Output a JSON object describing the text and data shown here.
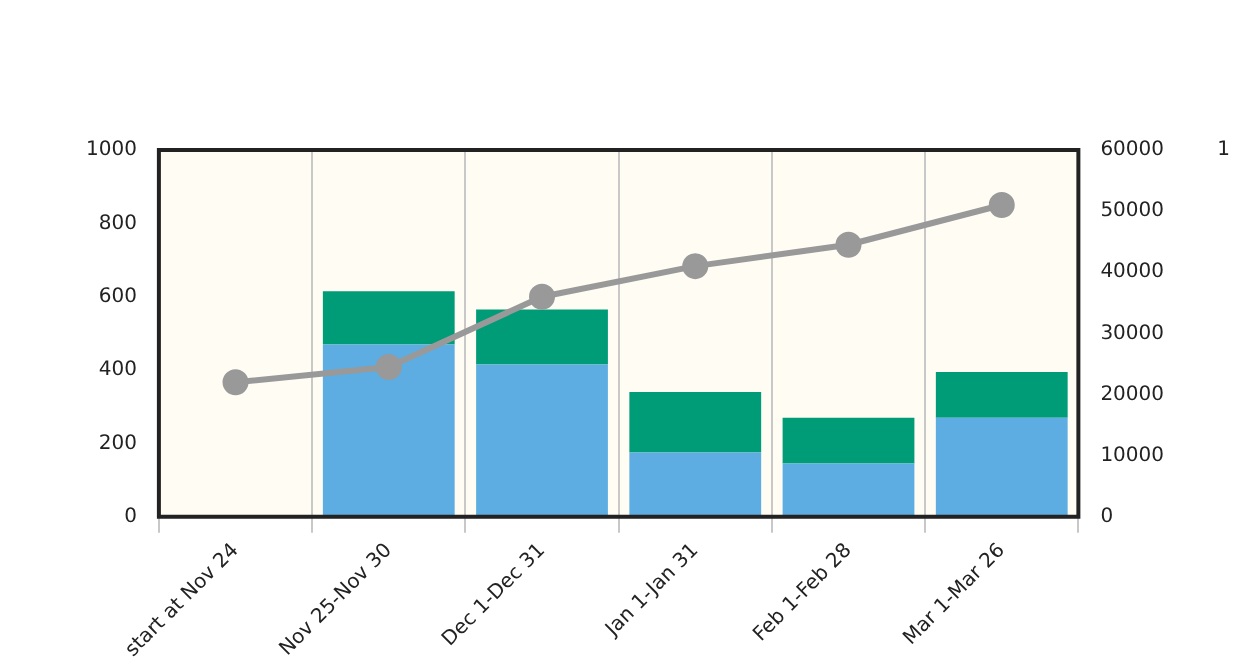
{
  "chart_data": {
    "type": "bar",
    "stacked": true,
    "categories": [
      "start at Nov 24",
      "Nov 25-Nov 30",
      "Dec 1-Dec 31",
      "Jan 1-Jan 31",
      "Feb 1-Feb 28",
      "Mar 1-Mar 26"
    ],
    "series": [
      {
        "color": "#5dade2",
        "values": [
          0,
          470,
          415,
          175,
          145,
          270
        ]
      },
      {
        "color": "#009b77",
        "values": [
          0,
          145,
          150,
          165,
          125,
          125
        ]
      },
      {
        "type": "line",
        "axis": "y2",
        "color": "#999999",
        "values": [
          22000,
          24500,
          36000,
          41000,
          44500,
          51000
        ]
      }
    ],
    "ylim": [
      0,
      1000
    ],
    "yticks": [
      0,
      200,
      400,
      600,
      800,
      1000
    ],
    "y2lim": [
      0,
      60000
    ],
    "y2ticks": [
      0,
      10000,
      20000,
      30000,
      40000,
      50000,
      60000
    ],
    "grid": "x",
    "legend": false,
    "marker": "circle",
    "annotations": [
      "1"
    ]
  }
}
